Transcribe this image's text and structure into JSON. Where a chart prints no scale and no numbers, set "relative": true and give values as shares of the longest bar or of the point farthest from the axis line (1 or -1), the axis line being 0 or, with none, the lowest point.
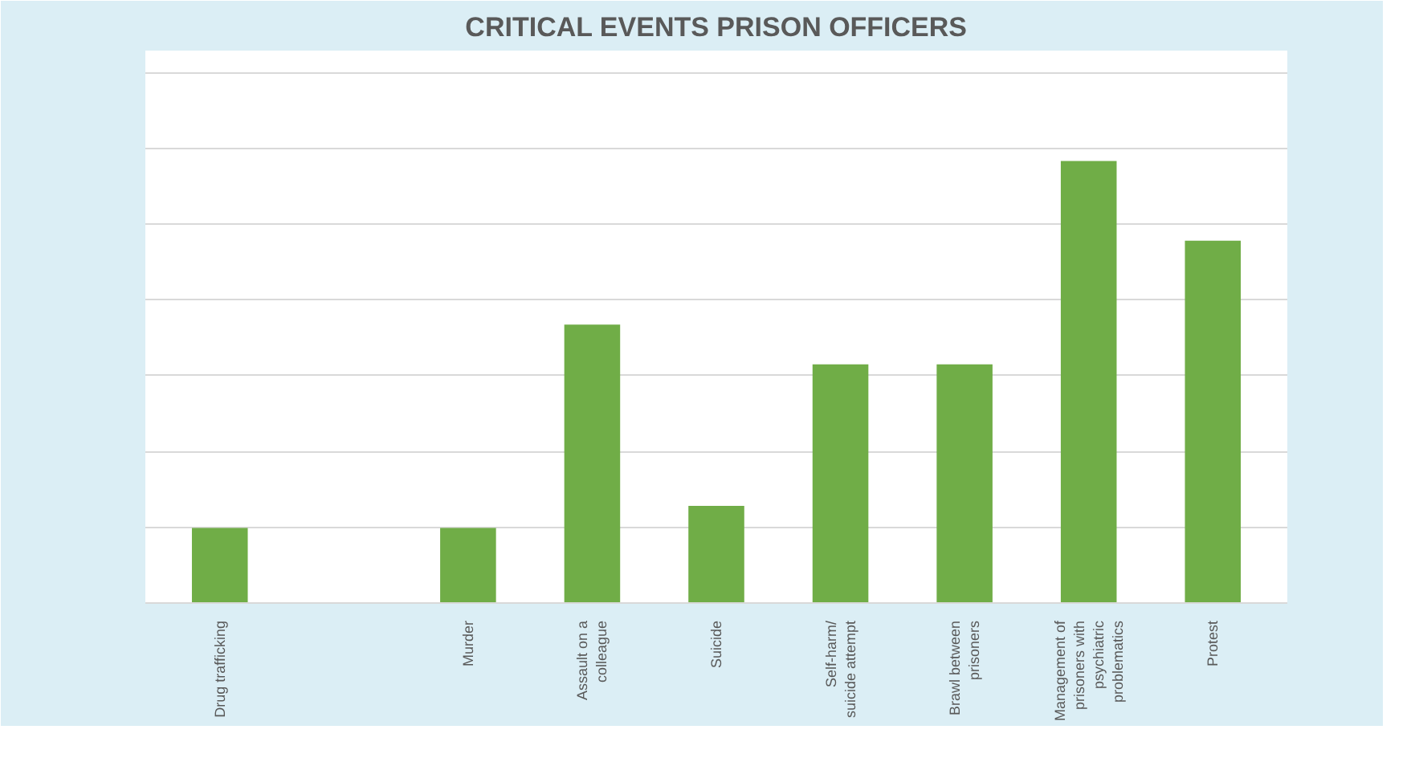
{
  "chart_data": {
    "type": "bar",
    "title": "CRITICAL EVENTS PRISON OFFICERS",
    "relative": true,
    "categories": [
      "Drug trafficking",
      null,
      "Murder",
      "Assault on a colleague",
      "Suicide",
      "Self-harm/ suicide attempt",
      "Brawl between prisoners",
      "Management of prisoners with psychiatric problematics",
      "Protest"
    ],
    "values": [
      0.17,
      0,
      0.17,
      0.63,
      0.22,
      0.54,
      0.54,
      1,
      0.82
    ],
    "color": "#70ad47",
    "grid": "y"
  }
}
